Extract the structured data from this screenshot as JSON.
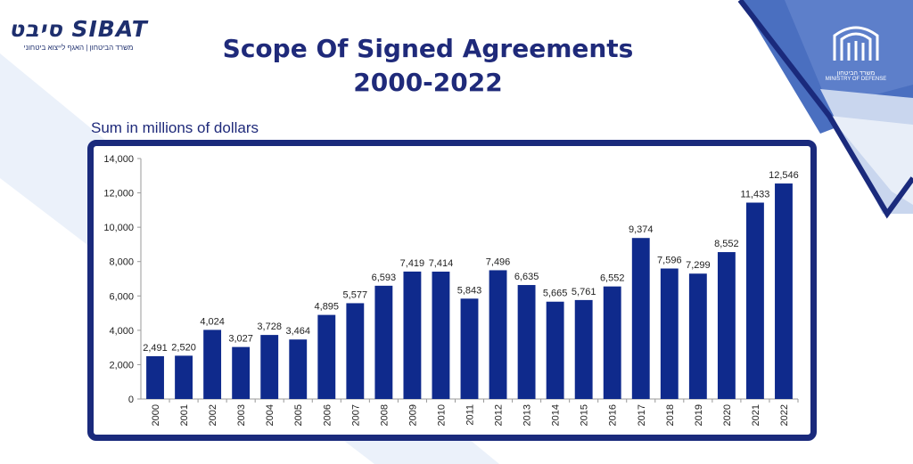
{
  "logo_left": {
    "brand": "סיבט SIBAT",
    "subtitle": "משרד הביטחון | האגף לייצוא ביטחוני"
  },
  "title_line1": "Scope Of Signed Agreements",
  "title_line2": "2000-2022",
  "subtitle": "Sum in millions of dollars",
  "mod_logo": {
    "hebrew": "משרד הביטחון",
    "english": "MINISTRY OF DEFENSE"
  },
  "colors": {
    "bar": "#0f2a8c",
    "frame": "#1a2a7c",
    "title": "#1f2a7a",
    "accent_light": "#dbe5f6",
    "accent_mid": "#4a6fc0"
  },
  "chart_data": {
    "type": "bar",
    "title": "Scope Of Signed Agreements 2000-2022",
    "ylabel": "Sum in millions of dollars",
    "xlabel": "",
    "ylim": [
      0,
      14000
    ],
    "yticks": [
      0,
      2000,
      4000,
      6000,
      8000,
      10000,
      12000,
      14000
    ],
    "ytick_labels": [
      "0",
      "2,000",
      "4,000",
      "6,000",
      "8,000",
      "10,000",
      "12,000",
      "14,000"
    ],
    "grid": false,
    "categories": [
      "2000",
      "2001",
      "2002",
      "2003",
      "2004",
      "2005",
      "2006",
      "2007",
      "2008",
      "2009",
      "2010",
      "2011",
      "2012",
      "2013",
      "2014",
      "2015",
      "2016",
      "2017",
      "2018",
      "2019",
      "2020",
      "2021",
      "2022"
    ],
    "values": [
      2491,
      2520,
      4024,
      3027,
      3728,
      3464,
      4895,
      5577,
      6593,
      7419,
      7414,
      5843,
      7496,
      6635,
      5665,
      5761,
      6552,
      9374,
      7596,
      7299,
      8552,
      11433,
      12546
    ],
    "value_labels": [
      "2,491",
      "2,520",
      "4,024",
      "3,027",
      "3,728",
      "3,464",
      "4,895",
      "5,577",
      "6,593",
      "7,419",
      "7,414",
      "5,843",
      "7,496",
      "6,635",
      "5,665",
      "5,761",
      "6,552",
      "9,374",
      "7,596",
      "7,299",
      "8,552",
      "11,433",
      "12,546"
    ]
  }
}
